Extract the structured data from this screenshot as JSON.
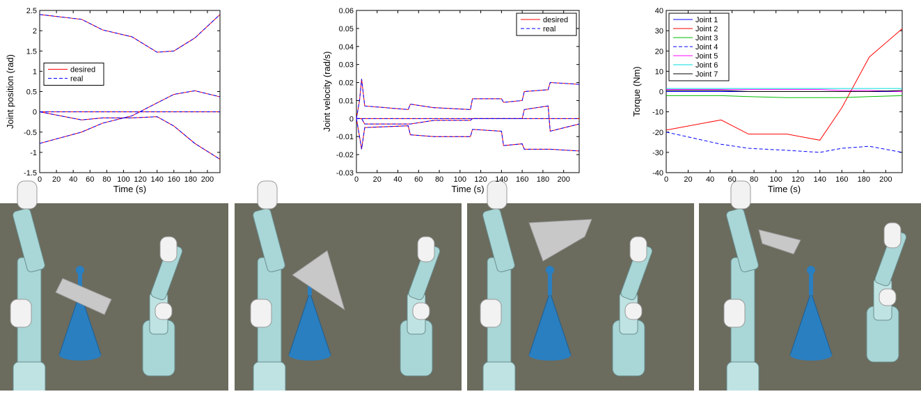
{
  "chart_data": [
    {
      "type": "line",
      "xlabel": "Time (s)",
      "ylabel": "Joint position (rad)",
      "x": [
        0,
        50,
        75,
        110,
        140,
        160,
        185,
        215
      ],
      "xlim": [
        0,
        215
      ],
      "xticks": [
        0,
        20,
        40,
        60,
        80,
        100,
        120,
        140,
        160,
        180,
        200
      ],
      "ylim": [
        -1.5,
        2.5
      ],
      "yticks": [
        -1.5,
        -1,
        -0.5,
        0,
        0.5,
        1,
        1.5,
        2,
        2.5
      ],
      "legend": "center left",
      "series": [
        {
          "name": "desired",
          "color": "#ff0000",
          "dash": false,
          "lines": [
            [
              2.4,
              2.28,
              2.02,
              1.85,
              1.47,
              1.5,
              1.82,
              2.4
            ],
            [
              -0.78,
              -0.5,
              -0.28,
              -0.1,
              0.22,
              0.43,
              0.52,
              0.37
            ],
            [
              0,
              -0.2,
              -0.15,
              -0.15,
              -0.12,
              -0.35,
              -0.78,
              -1.17
            ],
            [
              0,
              0,
              0,
              0,
              0,
              0,
              0,
              0
            ]
          ]
        },
        {
          "name": "real",
          "color": "#0000ff",
          "dash": true,
          "lines": [
            [
              2.4,
              2.28,
              2.02,
              1.85,
              1.47,
              1.5,
              1.82,
              2.4
            ],
            [
              -0.78,
              -0.5,
              -0.28,
              -0.1,
              0.22,
              0.43,
              0.52,
              0.37
            ],
            [
              0,
              -0.2,
              -0.15,
              -0.15,
              -0.12,
              -0.35,
              -0.78,
              -1.17
            ],
            [
              0,
              0,
              0,
              0,
              0,
              0,
              0,
              0
            ]
          ]
        }
      ]
    },
    {
      "type": "line",
      "xlabel": "Time (s)",
      "ylabel": "Joint velocity (rad/s)",
      "x": [
        0,
        3,
        5,
        8,
        50,
        52,
        75,
        77,
        110,
        112,
        140,
        142,
        160,
        162,
        185,
        187,
        215
      ],
      "xlim": [
        0,
        215
      ],
      "xticks": [
        0,
        20,
        40,
        60,
        80,
        100,
        120,
        140,
        160,
        180,
        200
      ],
      "ylim": [
        -0.03,
        0.06
      ],
      "yticks": [
        -0.03,
        -0.02,
        -0.01,
        0,
        0.01,
        0.02,
        0.03,
        0.04,
        0.05,
        0.06
      ],
      "legend": "upper right",
      "series": [
        {
          "name": "desired",
          "color": "#ff0000",
          "dash": false,
          "lines": [
            [
              0,
              0.01,
              0.022,
              0.007,
              0.005,
              0.008,
              0.006,
              0.006,
              0.005,
              0.011,
              0.011,
              0.009,
              0.01,
              0.015,
              0.016,
              0.02,
              0.019
            ],
            [
              0,
              -0.01,
              -0.017,
              -0.005,
              -0.004,
              -0.009,
              -0.01,
              -0.01,
              -0.01,
              -0.006,
              -0.007,
              -0.015,
              -0.014,
              -0.017,
              -0.017,
              -0.017,
              -0.018
            ],
            [
              0,
              0,
              0,
              -0.003,
              -0.003,
              -0.003,
              -0.001,
              -0.001,
              -0.001,
              0,
              0,
              0,
              0,
              0.005,
              0.007,
              -0.007,
              -0.003
            ],
            [
              0,
              0,
              0,
              0,
              0,
              0,
              0,
              0,
              0,
              0,
              0,
              0,
              0,
              0,
              0,
              0,
              0
            ]
          ]
        },
        {
          "name": "real",
          "color": "#0000ff",
          "dash": true,
          "lines": [
            [
              0,
              0.01,
              0.022,
              0.007,
              0.005,
              0.008,
              0.006,
              0.006,
              0.005,
              0.011,
              0.011,
              0.009,
              0.01,
              0.015,
              0.016,
              0.02,
              0.019
            ],
            [
              0,
              -0.01,
              -0.017,
              -0.005,
              -0.004,
              -0.009,
              -0.01,
              -0.01,
              -0.01,
              -0.006,
              -0.007,
              -0.015,
              -0.014,
              -0.017,
              -0.017,
              -0.017,
              -0.018
            ],
            [
              0,
              0,
              0,
              -0.003,
              -0.003,
              -0.003,
              -0.001,
              -0.001,
              -0.001,
              0,
              0,
              0,
              0,
              0.005,
              0.007,
              -0.007,
              -0.003
            ],
            [
              0,
              0,
              0,
              0,
              0,
              0,
              0,
              0,
              0,
              0,
              0,
              0,
              0,
              0,
              0,
              0,
              0
            ]
          ]
        }
      ]
    },
    {
      "type": "line",
      "xlabel": "Time (s)",
      "ylabel": "Torque (Nm)",
      "x": [
        0,
        50,
        75,
        110,
        140,
        160,
        185,
        215
      ],
      "xlim": [
        0,
        215
      ],
      "xticks": [
        0,
        20,
        40,
        60,
        80,
        100,
        120,
        140,
        160,
        180,
        200
      ],
      "ylim": [
        -40,
        40
      ],
      "yticks": [
        -40,
        -30,
        -20,
        -10,
        0,
        10,
        20,
        30,
        40
      ],
      "legend": "upper left",
      "series": [
        {
          "name": "Joint 1",
          "color": "#0000ff",
          "dash": false,
          "values": [
            0,
            0,
            0,
            0,
            0,
            0,
            0,
            0
          ]
        },
        {
          "name": "Joint 2",
          "color": "#ff0000",
          "dash": false,
          "values": [
            -19,
            -14,
            -21,
            -21,
            -24,
            -8,
            17,
            31
          ]
        },
        {
          "name": "Joint 3",
          "color": "#00bb00",
          "dash": false,
          "values": [
            -2,
            -2,
            -2.5,
            -3,
            -3,
            -3,
            -2.5,
            -2
          ]
        },
        {
          "name": "Joint 4",
          "color": "#0000ff",
          "dash": true,
          "values": [
            -20,
            -26,
            -28,
            -29,
            -30,
            -28,
            -27,
            -30
          ]
        },
        {
          "name": "Joint 5",
          "color": "#ff00ff",
          "dash": false,
          "values": [
            1,
            1,
            1,
            1,
            1,
            0.5,
            0.5,
            0
          ]
        },
        {
          "name": "Joint 6",
          "color": "#00dddd",
          "dash": false,
          "values": [
            1.5,
            1.5,
            1.5,
            1.5,
            1.5,
            1.5,
            1.5,
            1.5
          ]
        },
        {
          "name": "Joint 7",
          "color": "#000000",
          "dash": false,
          "values": [
            0.5,
            0.5,
            0,
            0,
            0,
            0,
            0,
            0.5
          ]
        }
      ]
    }
  ]
}
